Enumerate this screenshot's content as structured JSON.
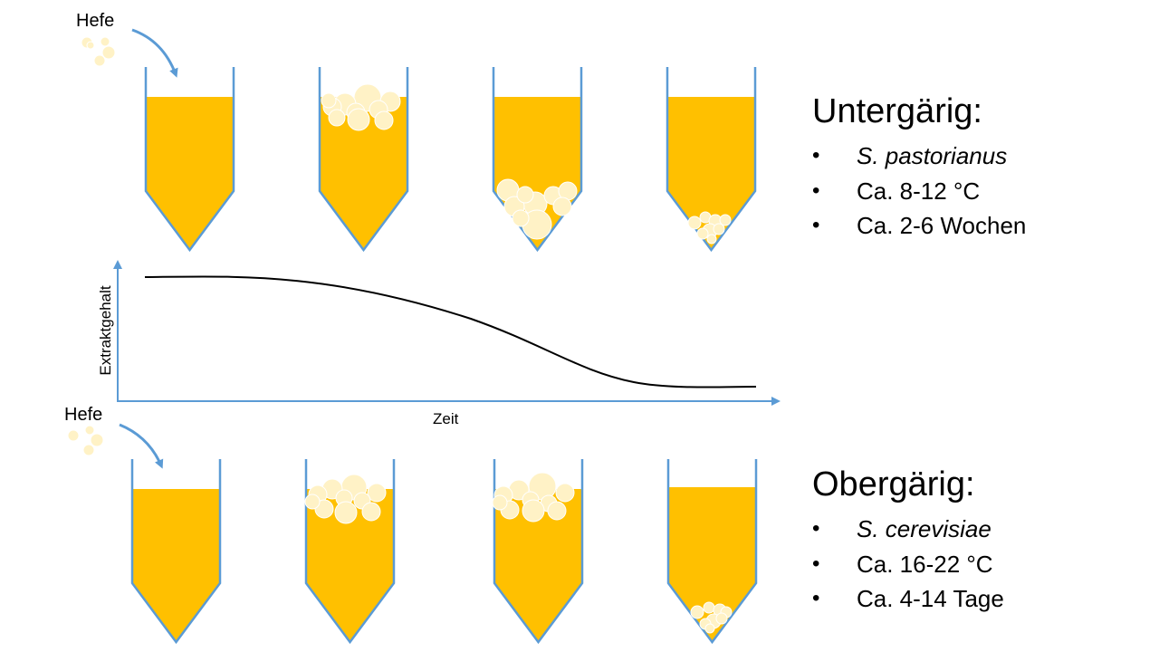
{
  "diagram": {
    "colors": {
      "wort": "#FFC000",
      "tank_outline": "#5B9BD5",
      "yeast": "#FFF2C6",
      "yeast_edge": "#FFFFFF",
      "arrow": "#5B9BD5",
      "curve": "#000000"
    },
    "yeast_label_top": "Hefe",
    "yeast_label_bottom": "Hefe",
    "graph": {
      "ylabel": "Extraktgehalt",
      "xlabel": "Zeit"
    }
  },
  "untergaerig": {
    "title": "Untergärig:",
    "items": [
      {
        "text": "S. pastorianus",
        "italic": true
      },
      {
        "text": "Ca. 8-12 °C",
        "italic": false
      },
      {
        "text": "Ca. 2-6 Wochen",
        "italic": false
      }
    ]
  },
  "obergaerig": {
    "title": "Obergärig:",
    "items": [
      {
        "text": "S. cerevisiae",
        "italic": true
      },
      {
        "text": "Ca. 16-22 °C",
        "italic": false
      },
      {
        "text": "Ca. 4-14 Tage",
        "italic": false
      }
    ]
  }
}
